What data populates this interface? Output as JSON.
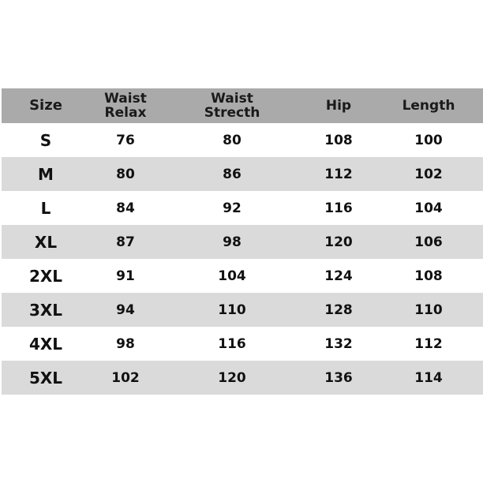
{
  "table": {
    "headers": [
      [
        "Size"
      ],
      [
        "Waist",
        "Relax"
      ],
      [
        "Waist",
        "Strecth"
      ],
      [
        "Hip"
      ],
      [
        "Length"
      ]
    ],
    "rows": [
      [
        "S",
        "76",
        "80",
        "108",
        "100"
      ],
      [
        "M",
        "80",
        "86",
        "112",
        "102"
      ],
      [
        "L",
        "84",
        "92",
        "116",
        "104"
      ],
      [
        "XL",
        "87",
        "98",
        "120",
        "106"
      ],
      [
        "2XL",
        "91",
        "104",
        "124",
        "108"
      ],
      [
        "3XL",
        "94",
        "110",
        "128",
        "110"
      ],
      [
        "4XL",
        "98",
        "116",
        "132",
        "112"
      ],
      [
        "5XL",
        "102",
        "120",
        "136",
        "114"
      ]
    ]
  },
  "colors": {
    "header_bg": "#aaaaaa",
    "alt_row_bg": "#dadada",
    "row_bg": "#ffffff"
  }
}
